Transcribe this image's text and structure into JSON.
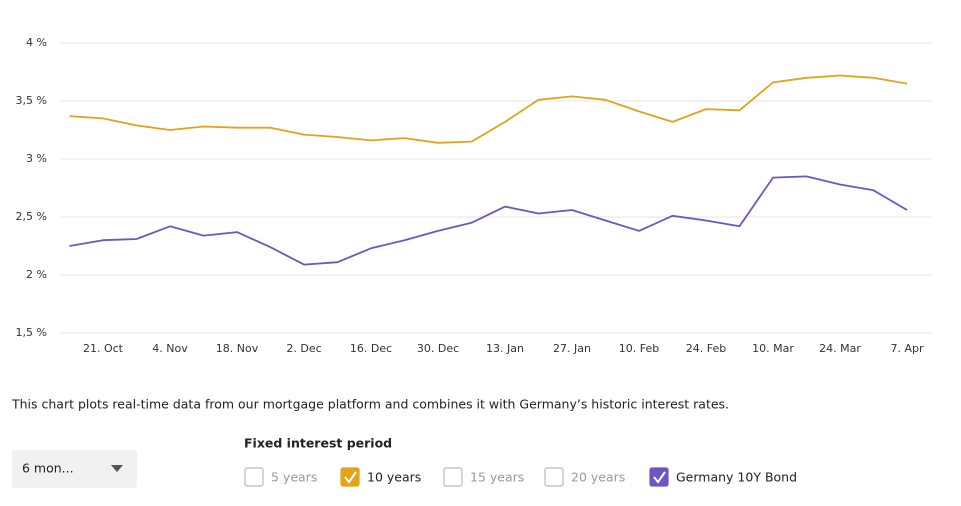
{
  "chart_data": {
    "type": "line",
    "categories": [
      null,
      "21. Oct",
      null,
      "4. Nov",
      null,
      "18. Nov",
      null,
      "2. Dec",
      null,
      "16. Dec",
      null,
      "30. Dec",
      null,
      "13. Jan",
      null,
      "27. Jan",
      null,
      "10. Feb",
      null,
      "24. Feb",
      null,
      "10. Mar",
      null,
      "24. Mar",
      null,
      "7. Apr"
    ],
    "series": [
      {
        "color": "#e3a21a",
        "values": [
          3.37,
          3.35,
          3.29,
          3.25,
          3.28,
          3.27,
          3.27,
          3.21,
          3.19,
          3.16,
          3.18,
          3.14,
          3.15,
          3.32,
          3.51,
          3.54,
          3.51,
          3.41,
          3.32,
          3.43,
          3.42,
          3.66,
          3.7,
          3.72,
          3.7,
          3.65
        ]
      },
      {
        "color": "#6f55c2",
        "values": [
          2.25,
          2.3,
          2.31,
          2.42,
          2.34,
          2.37,
          2.24,
          2.09,
          2.11,
          2.23,
          2.3,
          2.38,
          2.45,
          2.59,
          2.53,
          2.56,
          2.47,
          2.38,
          2.51,
          2.47,
          2.42,
          2.84,
          2.85,
          2.78,
          2.73,
          2.56
        ]
      }
    ],
    "ylim": [
      1.5,
      4
    ],
    "yticks": [
      {
        "value": 1.5,
        "label": "1,5 %"
      },
      {
        "value": 2,
        "label": "2 %"
      },
      {
        "value": 2.5,
        "label": "2,5 %"
      },
      {
        "value": 3,
        "label": "3 %"
      },
      {
        "value": 3.5,
        "label": "3,5 %"
      },
      {
        "value": 4,
        "label": "4 %"
      }
    ],
    "grid": true
  },
  "description": "This chart plots real-time data from our mortgage platform and combines it with Germany’s historic interest rates.",
  "dropdown": {
    "value": "6 mon..."
  },
  "filters": {
    "title": "Fixed interest period",
    "options": [
      {
        "label": "5 years",
        "checked": false
      },
      {
        "label": "10 years",
        "checked": true,
        "color": "#e3a21a"
      },
      {
        "label": "15 years",
        "checked": false
      },
      {
        "label": "20 years",
        "checked": false
      },
      {
        "label": "Germany 10Y Bond",
        "checked": true,
        "color": "#6f55c2"
      }
    ]
  }
}
